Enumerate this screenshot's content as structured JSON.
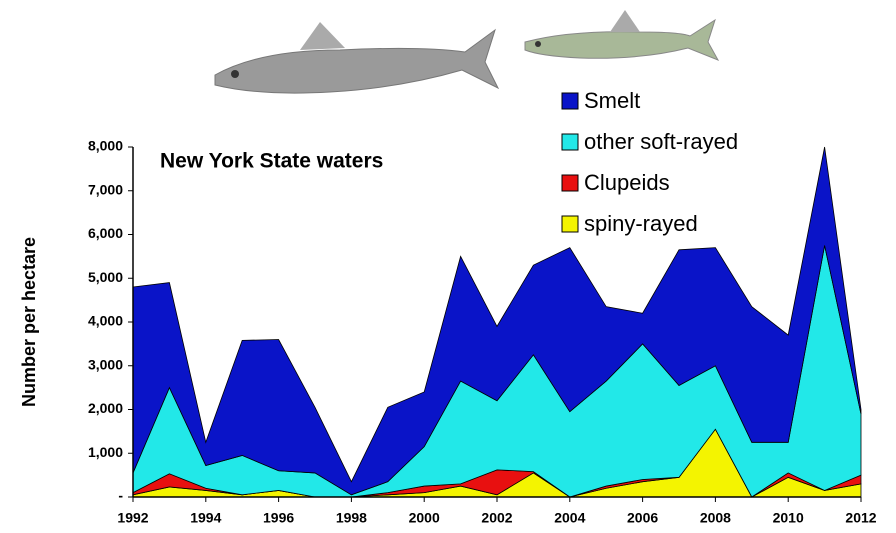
{
  "chart_data": {
    "type": "stacked-area",
    "title": "New York State waters",
    "y_label": "Number per hectare",
    "x": [
      1992,
      1993,
      1994,
      1995,
      1996,
      1997,
      1998,
      1999,
      2000,
      2001,
      2002,
      2003,
      2004,
      2005,
      2006,
      2007,
      2008,
      2009,
      2010,
      2011,
      2012
    ],
    "xlim": [
      1992,
      2012
    ],
    "xticks": [
      1992,
      1994,
      1996,
      1998,
      2000,
      2002,
      2004,
      2006,
      2008,
      2010,
      2012
    ],
    "ylim": [
      0,
      8000
    ],
    "yticks": [
      {
        "value": 0,
        "label": "-"
      },
      {
        "value": 1000,
        "label": "1,000"
      },
      {
        "value": 2000,
        "label": "2,000"
      },
      {
        "value": 3000,
        "label": "3,000"
      },
      {
        "value": 4000,
        "label": "4,000"
      },
      {
        "value": 5000,
        "label": "5,000"
      },
      {
        "value": 6000,
        "label": "6,000"
      },
      {
        "value": 7000,
        "label": "7,000"
      },
      {
        "value": 8000,
        "label": "8,000"
      }
    ],
    "series": [
      {
        "name": "Smelt",
        "color": "#0a14c8",
        "values": [
          4250,
          2400,
          530,
          2630,
          3000,
          1500,
          300,
          1700,
          1250,
          2850,
          1700,
          2050,
          3750,
          1700,
          700,
          3100,
          2700,
          3100,
          2450,
          2250,
          100
        ]
      },
      {
        "name": "other soft-rayed",
        "color": "#22e8e8",
        "values": [
          450,
          1970,
          520,
          900,
          450,
          550,
          50,
          250,
          900,
          2350,
          1580,
          2670,
          1950,
          2400,
          3100,
          2100,
          1450,
          1250,
          700,
          5600,
          1400
        ]
      },
      {
        "name": "Clupeids",
        "color": "#e81010",
        "values": [
          50,
          300,
          50,
          0,
          0,
          0,
          0,
          50,
          150,
          50,
          570,
          30,
          0,
          50,
          50,
          0,
          0,
          0,
          100,
          0,
          200
        ]
      },
      {
        "name": "spiny-rayed",
        "color": "#f4f400",
        "values": [
          50,
          230,
          150,
          50,
          150,
          0,
          0,
          50,
          100,
          250,
          50,
          550,
          0,
          200,
          350,
          450,
          1550,
          0,
          450,
          150,
          300
        ]
      }
    ]
  }
}
